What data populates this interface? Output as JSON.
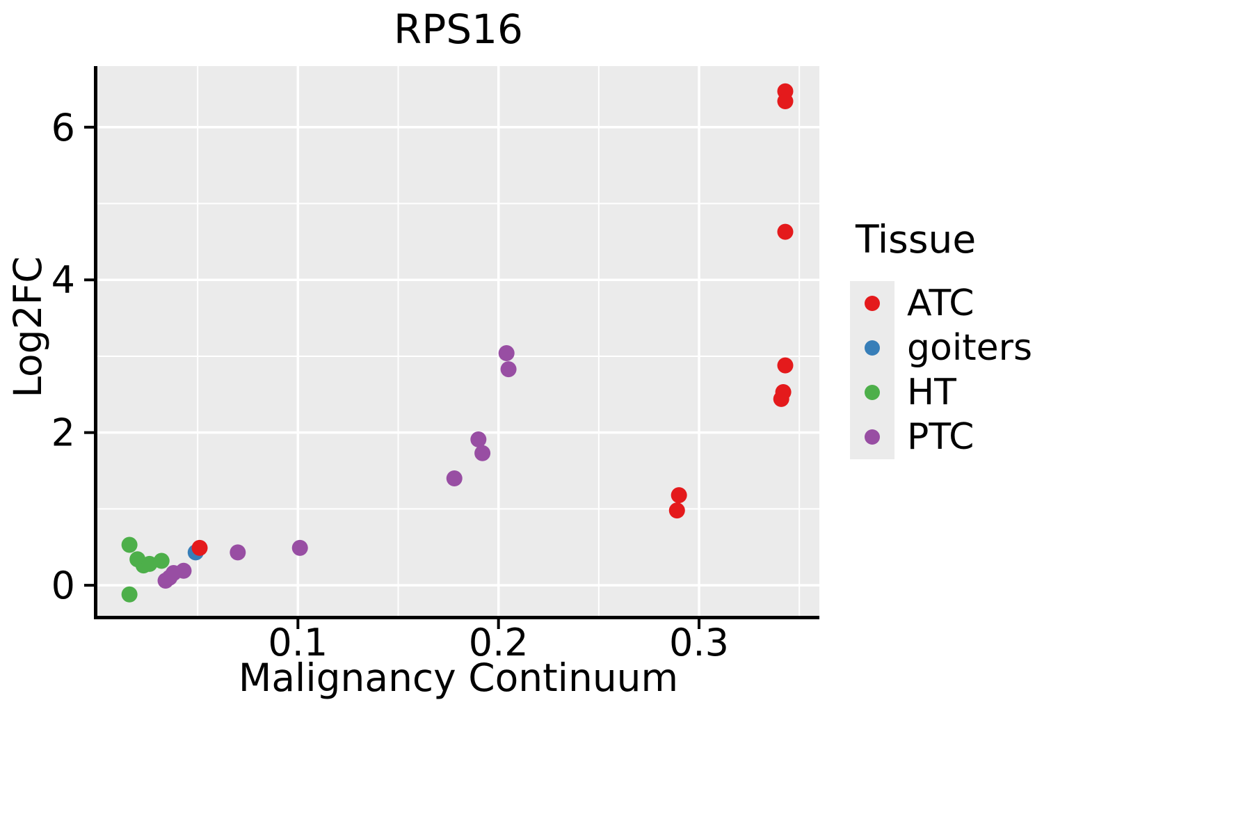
{
  "chart_data": {
    "type": "scatter",
    "title": "RPS16",
    "xlabel": "Malignancy Continuum",
    "ylabel": "Log2FC",
    "legend_title": "Tissue",
    "legend_position": "right",
    "grid": true,
    "panel_background": "#EBEBEB",
    "gridline_color": "#FFFFFF",
    "xlim": [
      0,
      0.36
    ],
    "ylim": [
      -0.4,
      6.8
    ],
    "xticks": [
      0.1,
      0.2,
      0.3
    ],
    "xtick_labels": [
      "0.1",
      "0.2",
      "0.3"
    ],
    "xticks_minor": [
      0.05,
      0.15,
      0.25,
      0.35
    ],
    "yticks": [
      0,
      2,
      4,
      6
    ],
    "ytick_labels": [
      "0",
      "2",
      "4",
      "6"
    ],
    "yticks_minor": [
      1,
      3,
      5
    ],
    "series": [
      {
        "name": "ATC",
        "color": "#E41A1C",
        "points": [
          [
            0.343,
            6.47
          ],
          [
            0.343,
            6.34
          ],
          [
            0.343,
            4.63
          ],
          [
            0.343,
            2.88
          ],
          [
            0.342,
            2.53
          ],
          [
            0.341,
            2.44
          ],
          [
            0.29,
            1.18
          ],
          [
            0.289,
            0.98
          ],
          [
            0.051,
            0.49
          ]
        ]
      },
      {
        "name": "goiters",
        "color": "#377EB8",
        "points": [
          [
            0.049,
            0.43
          ]
        ]
      },
      {
        "name": "HT",
        "color": "#4DAF4A",
        "points": [
          [
            0.016,
            0.53
          ],
          [
            0.02,
            0.34
          ],
          [
            0.023,
            0.26
          ],
          [
            0.026,
            0.28
          ],
          [
            0.032,
            0.32
          ],
          [
            0.016,
            -0.12
          ]
        ]
      },
      {
        "name": "PTC",
        "color": "#984EA3",
        "points": [
          [
            0.034,
            0.06
          ],
          [
            0.036,
            0.1
          ],
          [
            0.038,
            0.16
          ],
          [
            0.043,
            0.19
          ],
          [
            0.07,
            0.43
          ],
          [
            0.101,
            0.49
          ],
          [
            0.178,
            1.4
          ],
          [
            0.19,
            1.91
          ],
          [
            0.192,
            1.73
          ],
          [
            0.204,
            3.04
          ],
          [
            0.205,
            2.83
          ]
        ]
      }
    ]
  }
}
